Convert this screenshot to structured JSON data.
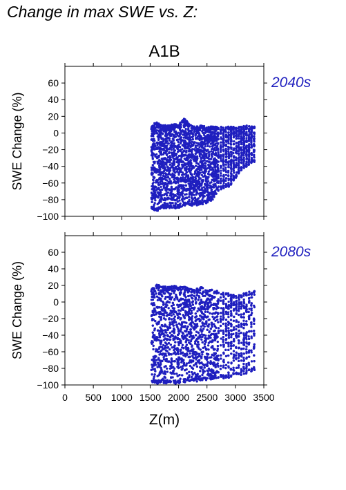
{
  "heading": "Change in max SWE vs. Z:",
  "colors": {
    "points": "#1f1fbf",
    "axes": "#000000",
    "period_label": "#1f1fbf"
  },
  "chart_data": [
    {
      "type": "scatter",
      "title": "A1B",
      "period": "2040s",
      "xlabel": "",
      "ylabel": "SWE Change (%)",
      "xlim": [
        0,
        3500
      ],
      "ylim": [
        -100,
        80
      ],
      "xticks": [
        0,
        500,
        1000,
        1500,
        2000,
        2500,
        3000,
        3500
      ],
      "yticks": [
        -100,
        -80,
        -60,
        -40,
        -20,
        0,
        20,
        40,
        60
      ],
      "grid": false,
      "series": [
        {
          "description_free": true,
          "x": [
            1520,
            1600,
            1700,
            1800,
            1900,
            2000,
            2100,
            2200,
            2300,
            2400,
            2500,
            2600,
            2700,
            2800,
            2900,
            3000,
            3100,
            3200,
            3300
          ],
          "y_max": [
            8,
            14,
            10,
            9,
            11,
            10,
            18,
            10,
            8,
            9,
            8,
            8,
            8,
            7,
            8,
            7,
            8,
            9,
            8
          ],
          "y_min": [
            -92,
            -95,
            -91,
            -90,
            -91,
            -90,
            -88,
            -88,
            -87,
            -86,
            -84,
            -80,
            -70,
            -66,
            -64,
            -55,
            -45,
            -40,
            -35
          ]
        }
      ]
    },
    {
      "type": "scatter",
      "title": "",
      "period": "2080s",
      "xlabel": "Z(m)",
      "ylabel": "SWE Change (%)",
      "xlim": [
        0,
        3500
      ],
      "ylim": [
        -100,
        80
      ],
      "xticks": [
        0,
        500,
        1000,
        1500,
        2000,
        2500,
        3000,
        3500
      ],
      "yticks": [
        -100,
        -80,
        -60,
        -40,
        -20,
        0,
        20,
        40,
        60
      ],
      "grid": false,
      "series": [
        {
          "description_free": true,
          "x": [
            1520,
            1600,
            1700,
            1800,
            1900,
            2000,
            2100,
            2200,
            2300,
            2400,
            2500,
            2600,
            2700,
            2800,
            2900,
            3000,
            3100,
            3200,
            3300
          ],
          "y_max": [
            16,
            22,
            20,
            18,
            20,
            18,
            19,
            16,
            16,
            18,
            17,
            15,
            14,
            12,
            10,
            8,
            9,
            12,
            14
          ],
          "y_min": [
            -98,
            -99,
            -98,
            -98,
            -99,
            -98,
            -98,
            -97,
            -96,
            -95,
            -94,
            -93,
            -92,
            -92,
            -91,
            -89,
            -88,
            -86,
            -84
          ]
        }
      ]
    }
  ]
}
